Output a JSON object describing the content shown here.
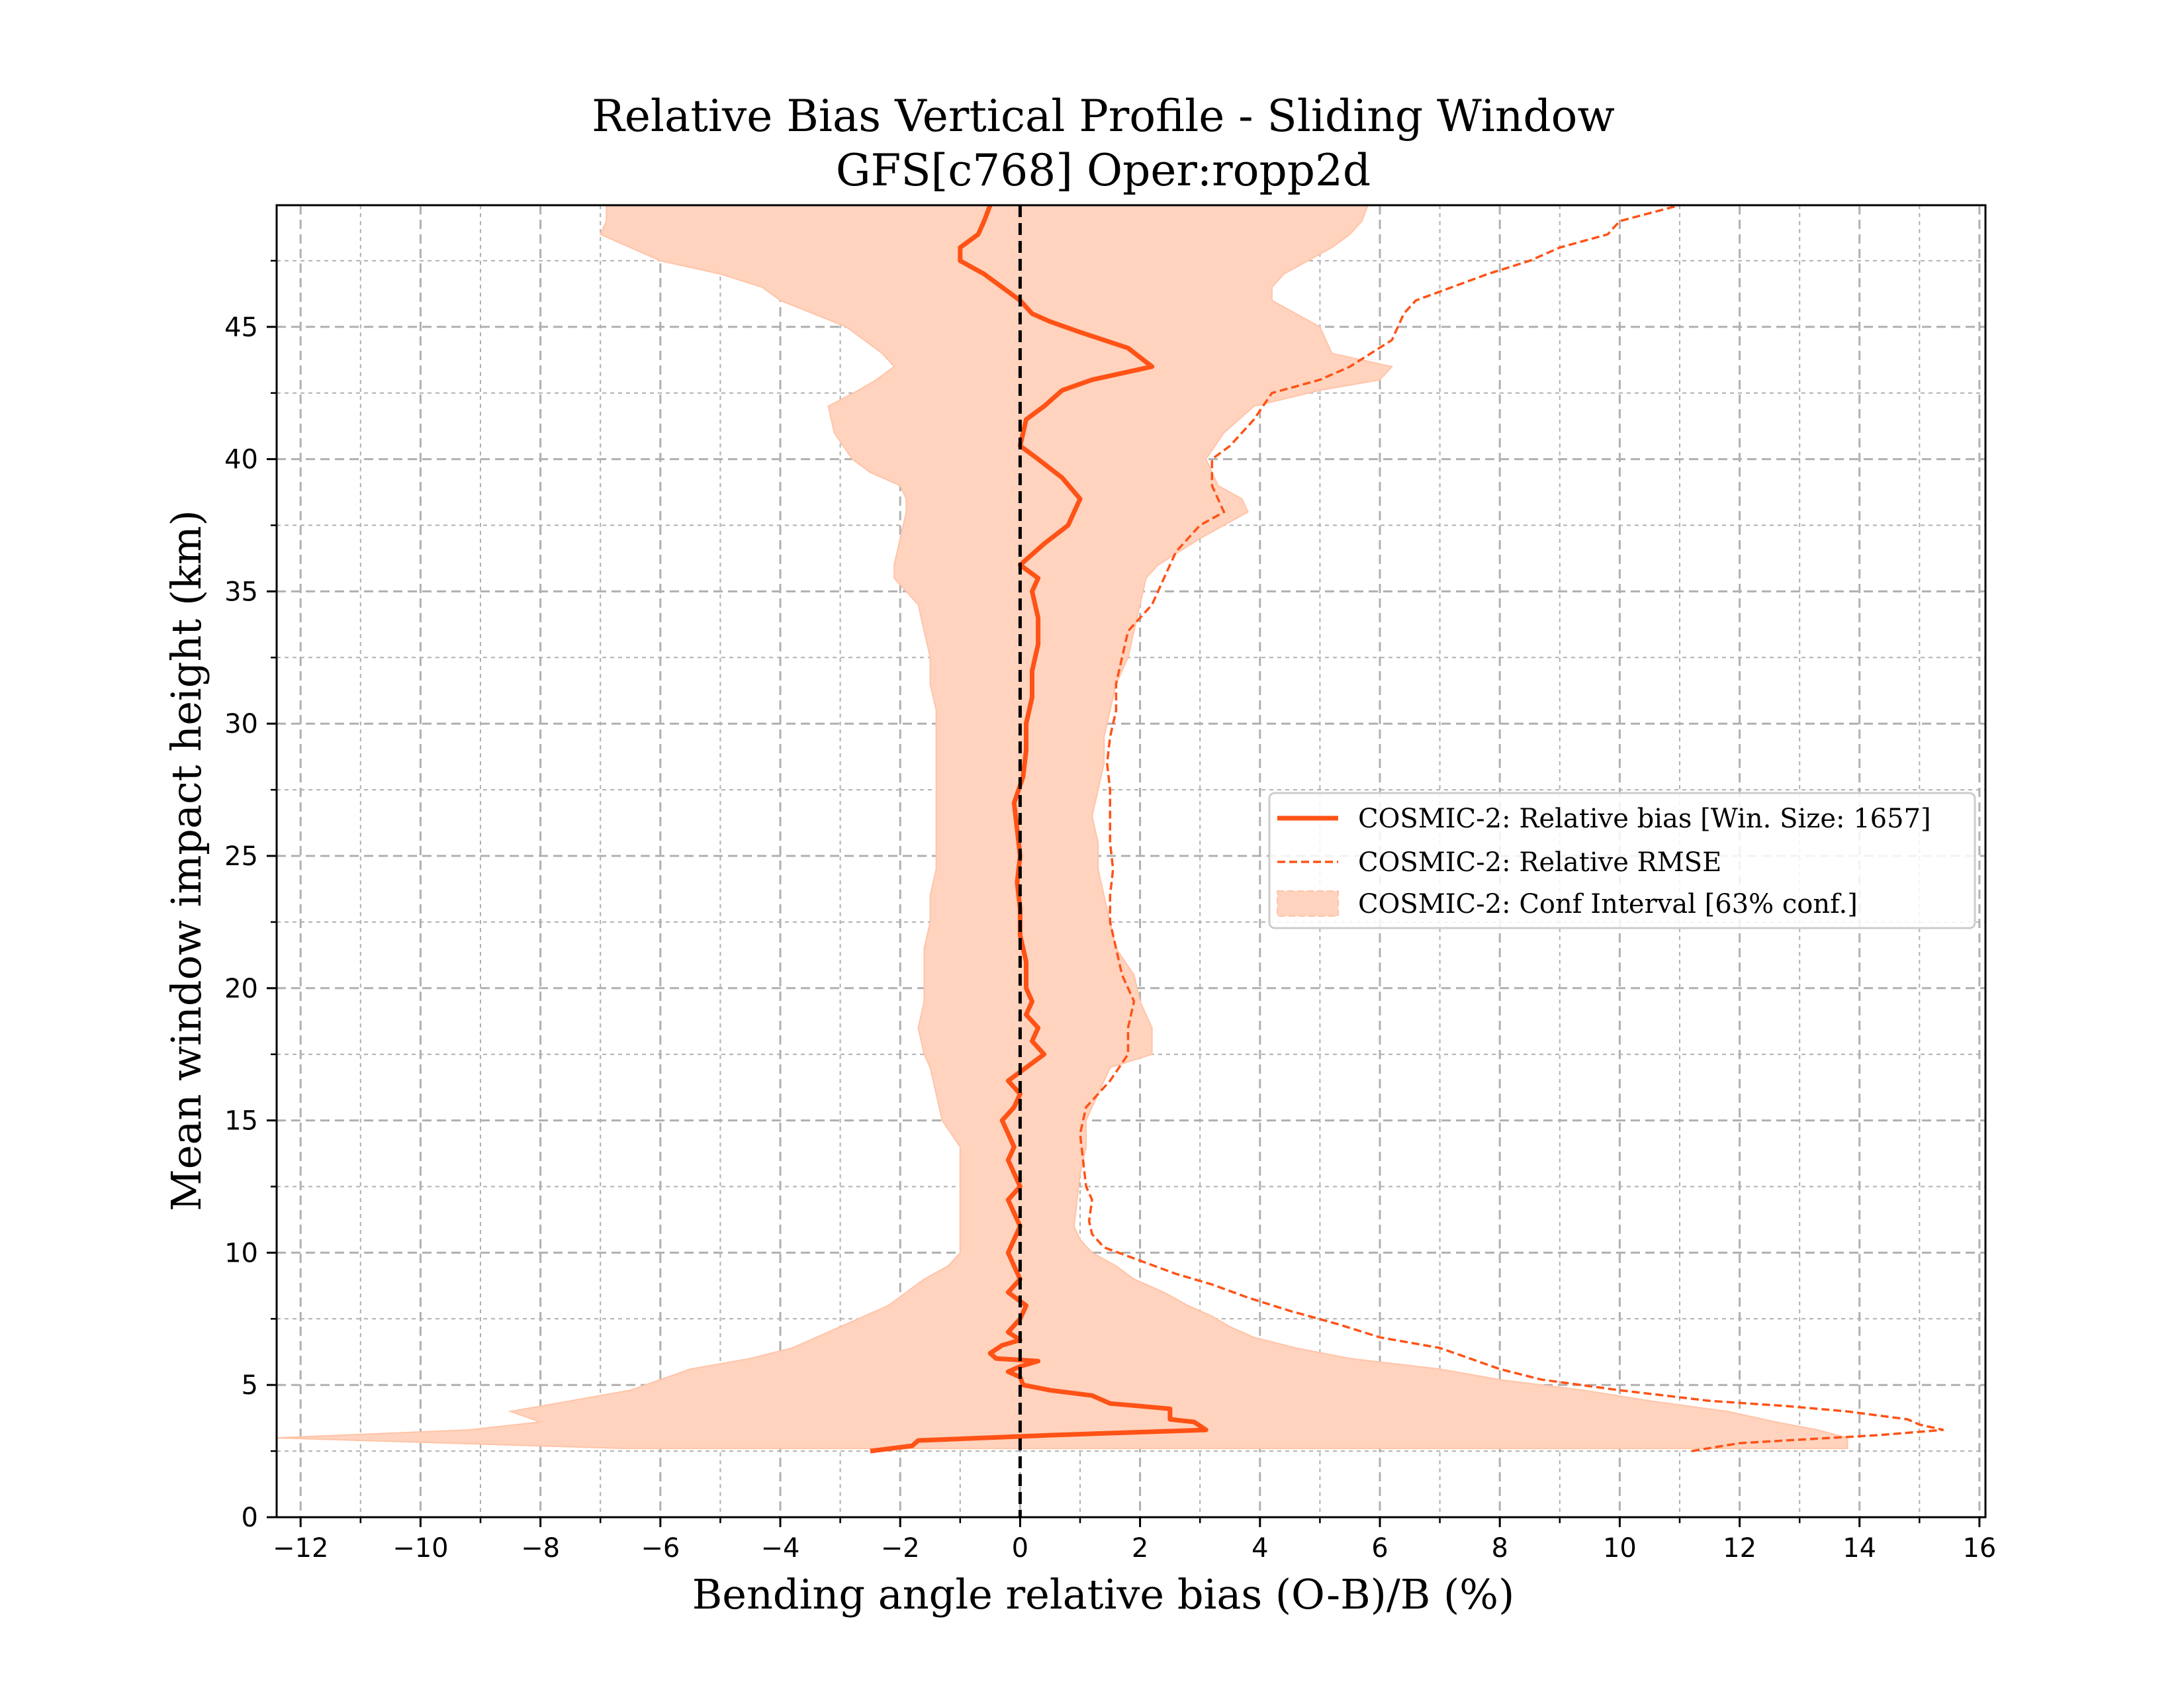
{
  "chart_data": {
    "type": "line",
    "title": "Relative Bias Vertical Profile - Sliding Window",
    "subtitle": "GFS[c768] Oper:ropp2d",
    "xlabel": "Bending angle relative bias (O-B)/B (%)",
    "ylabel": "Mean window impact height (km)",
    "xlim": [
      -12.4,
      16.1
    ],
    "ylim": [
      0,
      49.6
    ],
    "xticks": [
      -12,
      -10,
      -8,
      -6,
      -4,
      -2,
      0,
      2,
      4,
      6,
      8,
      10,
      12,
      14,
      16
    ],
    "xtick_labels": [
      "−12",
      "−10",
      "−8",
      "−6",
      "−4",
      "−2",
      "0",
      "2",
      "4",
      "6",
      "8",
      "10",
      "12",
      "14",
      "16"
    ],
    "yticks": [
      0,
      5,
      10,
      15,
      20,
      25,
      30,
      35,
      40,
      45
    ],
    "ytick_labels": [
      "0",
      "5",
      "10",
      "15",
      "20",
      "25",
      "30",
      "35",
      "40",
      "45"
    ],
    "grid": true,
    "legend_position": "center-right",
    "colors": {
      "series": "#FF5216",
      "fill": "#FFD3BE",
      "fill_edge": "#FFC4A8",
      "zero_line": "#000000",
      "grid": "#b0b0b0"
    },
    "zero_line": {
      "x": 0,
      "style": "dashed"
    },
    "series": [
      {
        "name": "COSMIC-2: Relative bias [Win. Size: 1657]",
        "style": "solid",
        "points": [
          [
            -2.5,
            2.5
          ],
          [
            -1.8,
            2.7
          ],
          [
            -1.7,
            2.9
          ],
          [
            0.5,
            3.1
          ],
          [
            3.1,
            3.3
          ],
          [
            2.9,
            3.6
          ],
          [
            2.5,
            3.7
          ],
          [
            2.5,
            4.1
          ],
          [
            1.5,
            4.3
          ],
          [
            1.2,
            4.6
          ],
          [
            0.5,
            4.8
          ],
          [
            0.05,
            5.0
          ],
          [
            0.0,
            5.3
          ],
          [
            -0.2,
            5.5
          ],
          [
            0.0,
            5.7
          ],
          [
            0.3,
            5.9
          ],
          [
            -0.4,
            6.0
          ],
          [
            -0.5,
            6.2
          ],
          [
            -0.3,
            6.5
          ],
          [
            0.0,
            6.7
          ],
          [
            -0.2,
            7.0
          ],
          [
            0.0,
            7.5
          ],
          [
            0.1,
            8.0
          ],
          [
            -0.2,
            8.5
          ],
          [
            0.0,
            9.0
          ],
          [
            -0.1,
            9.5
          ],
          [
            -0.2,
            10.0
          ],
          [
            -0.1,
            10.5
          ],
          [
            0.0,
            11.0
          ],
          [
            -0.1,
            11.5
          ],
          [
            -0.2,
            12.0
          ],
          [
            0.0,
            12.5
          ],
          [
            -0.1,
            13.0
          ],
          [
            -0.2,
            13.5
          ],
          [
            -0.1,
            14.0
          ],
          [
            -0.2,
            14.5
          ],
          [
            -0.3,
            15.0
          ],
          [
            -0.1,
            15.5
          ],
          [
            0.0,
            16.0
          ],
          [
            -0.2,
            16.5
          ],
          [
            0.1,
            17.0
          ],
          [
            0.4,
            17.5
          ],
          [
            0.2,
            18.0
          ],
          [
            0.3,
            18.5
          ],
          [
            0.1,
            19.0
          ],
          [
            0.2,
            19.5
          ],
          [
            0.1,
            20.0
          ],
          [
            0.1,
            21.0
          ],
          [
            0.0,
            22.0
          ],
          [
            0.0,
            23.0
          ],
          [
            -0.05,
            24.0
          ],
          [
            0.0,
            25.0
          ],
          [
            -0.05,
            26.0
          ],
          [
            -0.1,
            27.0
          ],
          [
            0.05,
            28.0
          ],
          [
            0.1,
            29.0
          ],
          [
            0.1,
            30.0
          ],
          [
            0.2,
            31.0
          ],
          [
            0.2,
            32.0
          ],
          [
            0.3,
            33.0
          ],
          [
            0.3,
            34.0
          ],
          [
            0.2,
            35.0
          ],
          [
            0.3,
            35.5
          ],
          [
            0.0,
            36.0
          ],
          [
            0.4,
            36.8
          ],
          [
            0.8,
            37.5
          ],
          [
            1.0,
            38.5
          ],
          [
            0.7,
            39.3
          ],
          [
            0.3,
            40.0
          ],
          [
            0.0,
            40.5
          ],
          [
            0.1,
            41.5
          ],
          [
            0.4,
            42.0
          ],
          [
            0.7,
            42.6
          ],
          [
            1.2,
            43.0
          ],
          [
            2.2,
            43.5
          ],
          [
            1.8,
            44.2
          ],
          [
            1.0,
            44.8
          ],
          [
            0.5,
            45.2
          ],
          [
            0.2,
            45.5
          ],
          [
            0.0,
            46.0
          ],
          [
            -0.3,
            46.5
          ],
          [
            -0.6,
            47.0
          ],
          [
            -1.0,
            47.5
          ],
          [
            -1.0,
            48.0
          ],
          [
            -0.7,
            48.5
          ],
          [
            -0.6,
            49.0
          ],
          [
            -0.5,
            49.6
          ]
        ]
      },
      {
        "name": "COSMIC-2: Relative RMSE",
        "style": "dashed",
        "points": [
          [
            11.2,
            2.5
          ],
          [
            12.0,
            2.8
          ],
          [
            14.3,
            3.1
          ],
          [
            15.4,
            3.3
          ],
          [
            15.0,
            3.5
          ],
          [
            14.8,
            3.7
          ],
          [
            13.8,
            4.0
          ],
          [
            12.8,
            4.2
          ],
          [
            11.5,
            4.4
          ],
          [
            10.0,
            4.8
          ],
          [
            8.7,
            5.2
          ],
          [
            8.0,
            5.6
          ],
          [
            7.5,
            6.0
          ],
          [
            7.0,
            6.4
          ],
          [
            6.0,
            6.8
          ],
          [
            5.3,
            7.3
          ],
          [
            4.5,
            7.8
          ],
          [
            3.8,
            8.3
          ],
          [
            3.2,
            8.8
          ],
          [
            2.6,
            9.2
          ],
          [
            2.0,
            9.7
          ],
          [
            1.4,
            10.2
          ],
          [
            1.2,
            10.7
          ],
          [
            1.15,
            11.2
          ],
          [
            1.2,
            12.0
          ],
          [
            1.1,
            12.5
          ],
          [
            1.05,
            13.5
          ],
          [
            1.0,
            14.5
          ],
          [
            1.1,
            15.5
          ],
          [
            1.5,
            16.5
          ],
          [
            1.8,
            17.5
          ],
          [
            1.8,
            18.5
          ],
          [
            1.9,
            19.5
          ],
          [
            1.7,
            20.5
          ],
          [
            1.6,
            21.5
          ],
          [
            1.5,
            22.5
          ],
          [
            1.5,
            23.5
          ],
          [
            1.55,
            24.5
          ],
          [
            1.5,
            25.5
          ],
          [
            1.5,
            26.5
          ],
          [
            1.5,
            27.5
          ],
          [
            1.45,
            28.5
          ],
          [
            1.5,
            29.5
          ],
          [
            1.6,
            30.5
          ],
          [
            1.6,
            31.5
          ],
          [
            1.7,
            32.5
          ],
          [
            1.8,
            33.5
          ],
          [
            2.2,
            34.5
          ],
          [
            2.4,
            35.5
          ],
          [
            2.6,
            36.5
          ],
          [
            3.0,
            37.5
          ],
          [
            3.4,
            38.0
          ],
          [
            3.2,
            39.0
          ],
          [
            3.2,
            40.0
          ],
          [
            3.5,
            40.5
          ],
          [
            3.9,
            41.5
          ],
          [
            4.2,
            42.5
          ],
          [
            5.0,
            43.0
          ],
          [
            5.5,
            43.5
          ],
          [
            6.2,
            44.5
          ],
          [
            6.4,
            45.5
          ],
          [
            6.6,
            46.0
          ],
          [
            7.2,
            46.5
          ],
          [
            7.8,
            47.0
          ],
          [
            8.5,
            47.5
          ],
          [
            9.0,
            48.0
          ],
          [
            9.8,
            48.5
          ],
          [
            10.0,
            49.0
          ],
          [
            10.5,
            49.3
          ],
          [
            11.0,
            49.6
          ]
        ]
      }
    ],
    "confidence_interval": {
      "name": "COSMIC-2: Conf Interval [63% conf.]",
      "points": [
        [
          2.6,
          -6.6,
          13.8
        ],
        [
          3.0,
          -12.4,
          13.8
        ],
        [
          3.3,
          -9.2,
          13.3
        ],
        [
          3.6,
          -8.0,
          12.6
        ],
        [
          4.0,
          -8.5,
          11.8
        ],
        [
          4.4,
          -7.5,
          10.5
        ],
        [
          4.8,
          -6.5,
          9.4
        ],
        [
          5.2,
          -6.0,
          8.0
        ],
        [
          5.6,
          -5.5,
          7.0
        ],
        [
          6.0,
          -4.5,
          5.5
        ],
        [
          6.4,
          -3.8,
          4.6
        ],
        [
          6.8,
          -3.4,
          3.9
        ],
        [
          7.2,
          -3.0,
          3.5
        ],
        [
          7.6,
          -2.6,
          3.2
        ],
        [
          8.0,
          -2.2,
          2.8
        ],
        [
          8.5,
          -1.9,
          2.4
        ],
        [
          9.0,
          -1.6,
          1.9
        ],
        [
          9.5,
          -1.2,
          1.6
        ],
        [
          10.0,
          -1.0,
          1.2
        ],
        [
          10.5,
          -1.0,
          1.0
        ],
        [
          11.0,
          -1.0,
          0.9
        ],
        [
          12.0,
          -1.0,
          0.95
        ],
        [
          13.0,
          -1.0,
          1.0
        ],
        [
          14.0,
          -1.0,
          1.1
        ],
        [
          15.0,
          -1.3,
          1.1
        ],
        [
          16.0,
          -1.4,
          1.3
        ],
        [
          17.0,
          -1.5,
          1.5
        ],
        [
          17.5,
          -1.6,
          2.2
        ],
        [
          18.5,
          -1.7,
          2.2
        ],
        [
          19.5,
          -1.6,
          2.0
        ],
        [
          20.5,
          -1.6,
          1.9
        ],
        [
          21.5,
          -1.6,
          1.6
        ],
        [
          22.5,
          -1.5,
          1.5
        ],
        [
          23.5,
          -1.5,
          1.4
        ],
        [
          24.5,
          -1.4,
          1.3
        ],
        [
          25.5,
          -1.4,
          1.3
        ],
        [
          26.5,
          -1.4,
          1.2
        ],
        [
          27.5,
          -1.4,
          1.3
        ],
        [
          28.5,
          -1.4,
          1.4
        ],
        [
          29.5,
          -1.4,
          1.4
        ],
        [
          30.5,
          -1.4,
          1.5
        ],
        [
          31.5,
          -1.5,
          1.6
        ],
        [
          32.5,
          -1.5,
          1.8
        ],
        [
          33.5,
          -1.6,
          1.9
        ],
        [
          34.5,
          -1.7,
          2.0
        ],
        [
          35.5,
          -2.1,
          2.1
        ],
        [
          36.0,
          -2.1,
          2.3
        ],
        [
          37.0,
          -2.0,
          3.0
        ],
        [
          38.0,
          -1.9,
          3.8
        ],
        [
          38.5,
          -1.9,
          3.7
        ],
        [
          39.0,
          -2.0,
          3.3
        ],
        [
          39.5,
          -2.5,
          3.2
        ],
        [
          40.0,
          -2.8,
          3.1
        ],
        [
          41.0,
          -3.1,
          3.4
        ],
        [
          42.0,
          -3.2,
          3.9
        ],
        [
          42.6,
          -2.7,
          5.0
        ],
        [
          43.0,
          -2.4,
          6.0
        ],
        [
          43.5,
          -2.1,
          6.2
        ],
        [
          44.0,
          -2.3,
          5.2
        ],
        [
          45.0,
          -2.9,
          5.0
        ],
        [
          46.0,
          -4.0,
          4.2
        ],
        [
          46.5,
          -4.3,
          4.2
        ],
        [
          47.0,
          -5.0,
          4.4
        ],
        [
          47.5,
          -6.0,
          4.8
        ],
        [
          48.0,
          -6.5,
          5.2
        ],
        [
          48.5,
          -7.0,
          5.5
        ],
        [
          49.0,
          -6.9,
          5.7
        ],
        [
          49.6,
          -6.9,
          5.8
        ]
      ]
    }
  }
}
